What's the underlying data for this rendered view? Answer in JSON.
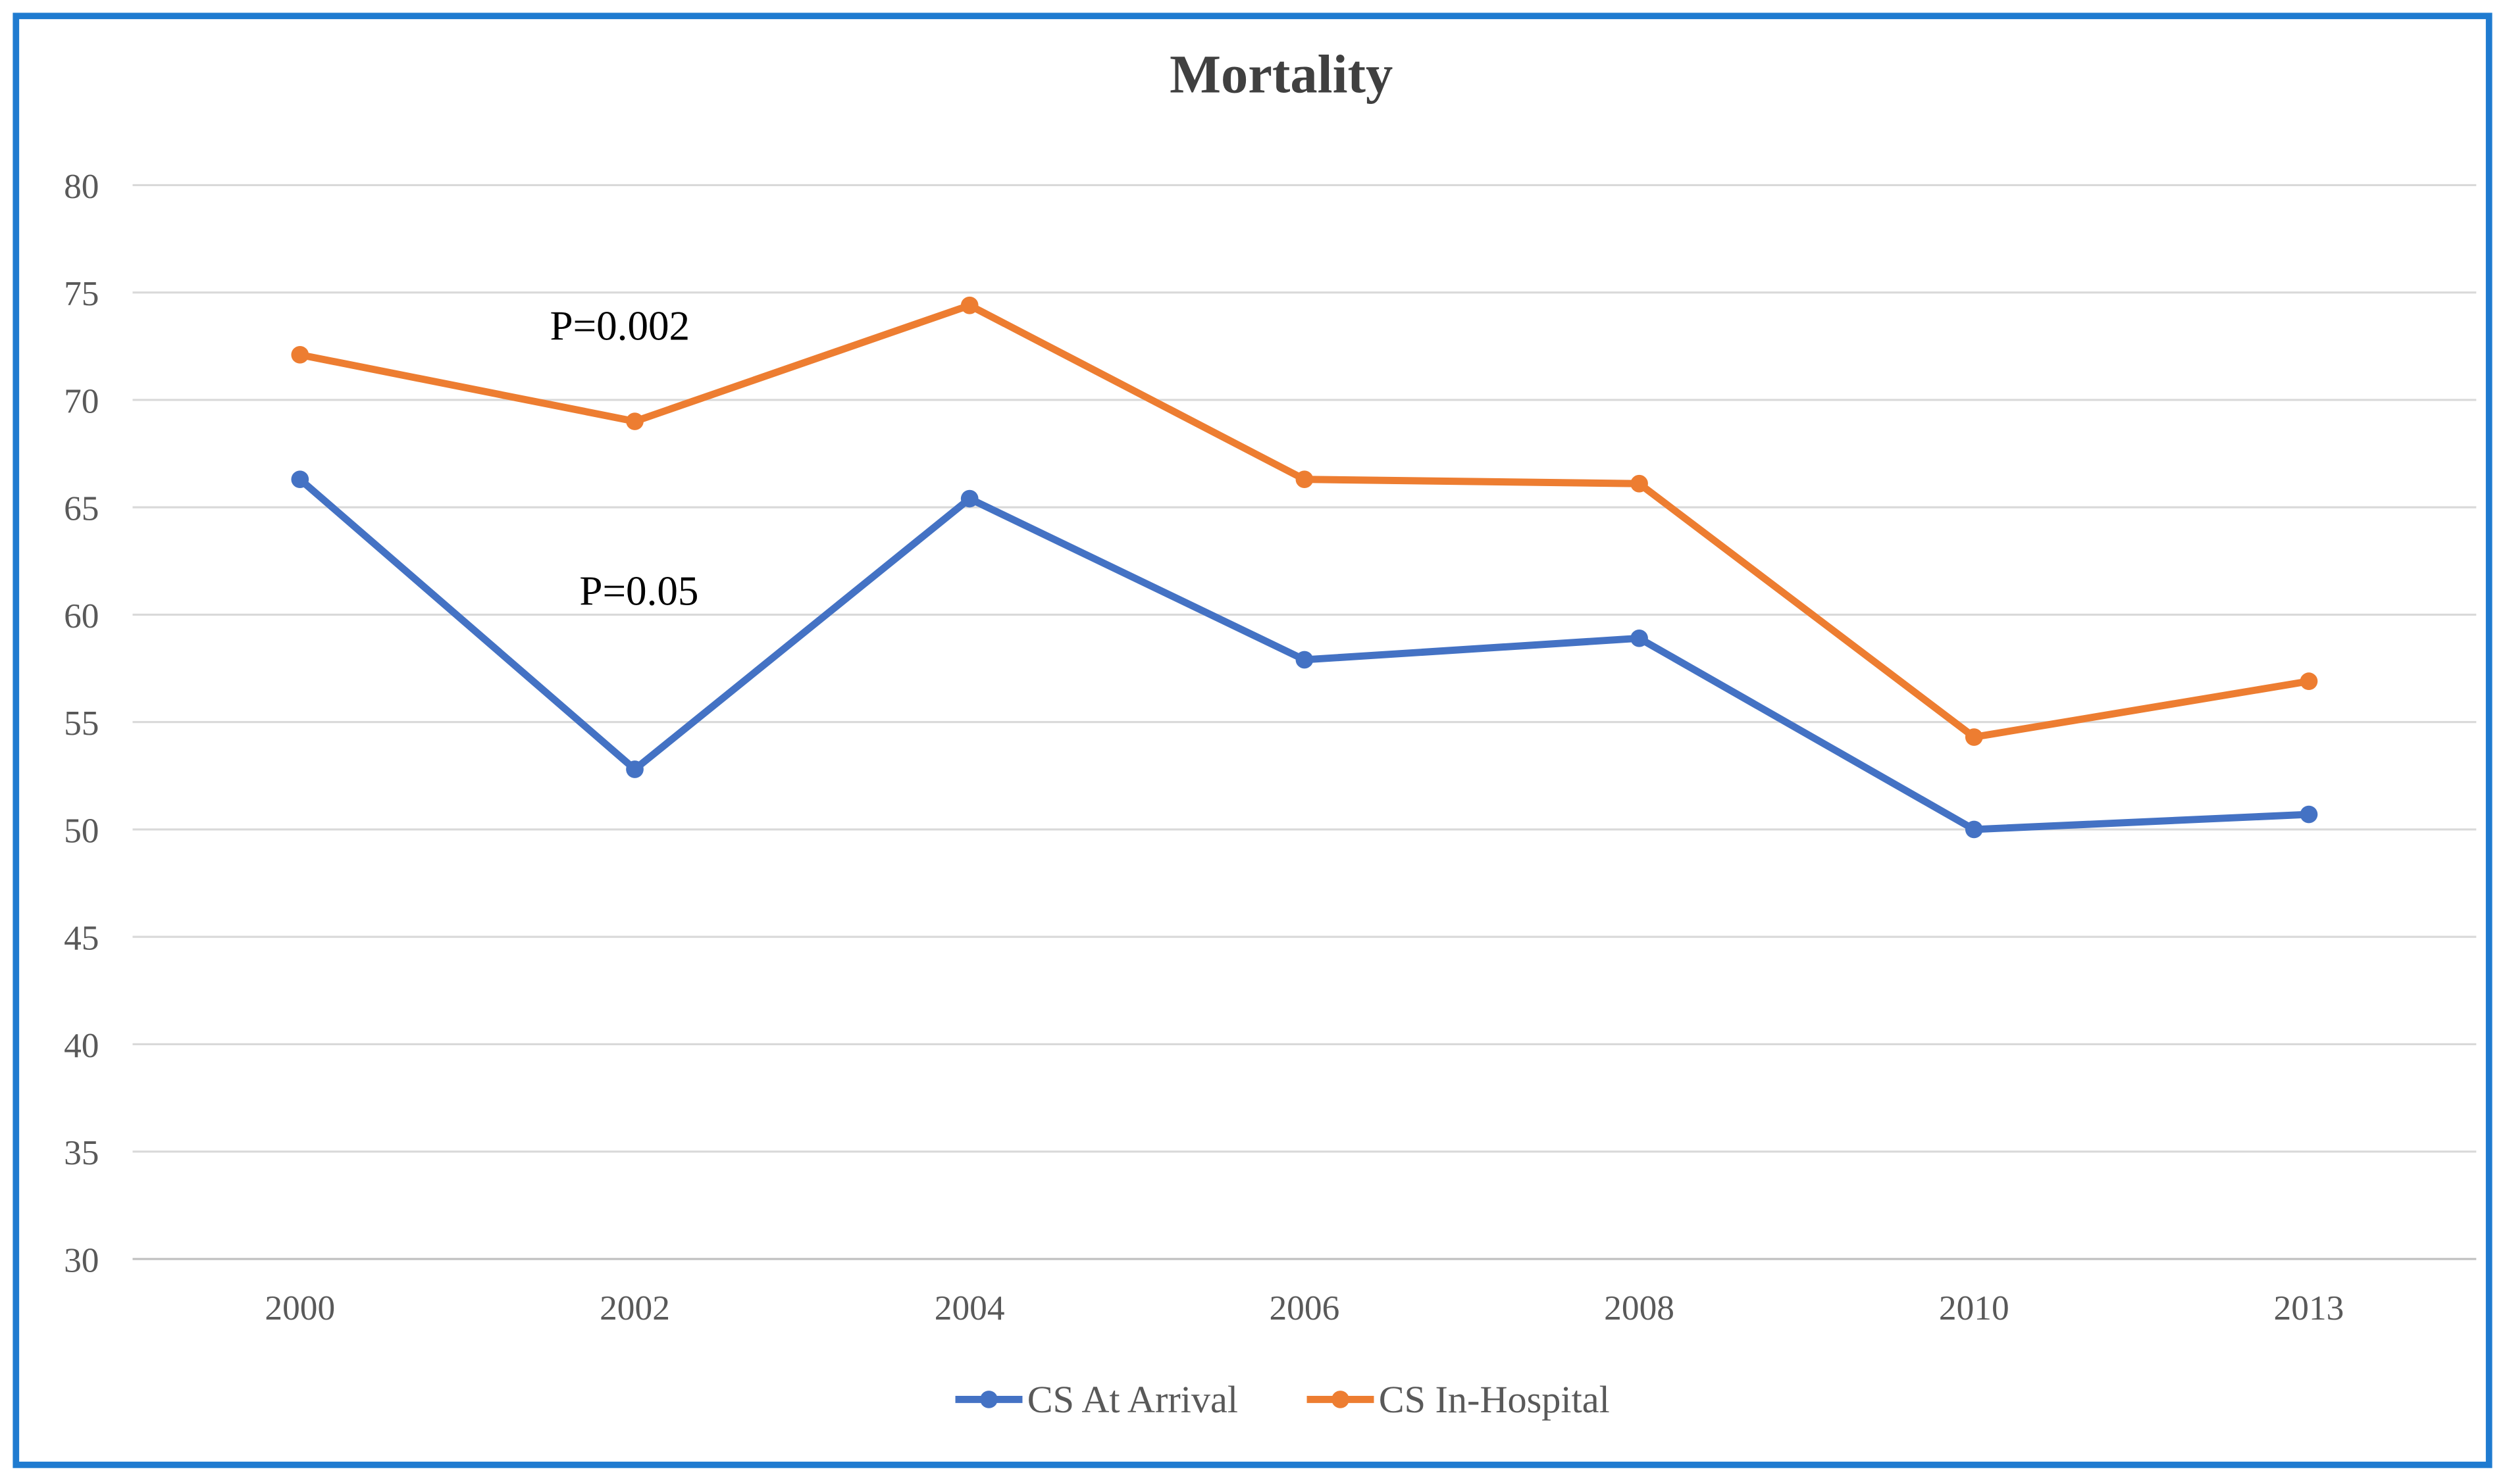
{
  "chart_data": {
    "type": "line",
    "title": "Mortality",
    "xlabel": "",
    "ylabel": "",
    "categories": [
      "2000",
      "2002",
      "2004",
      "2006",
      "2008",
      "2010",
      "2013"
    ],
    "ylim": [
      30,
      80
    ],
    "yticks": [
      30,
      35,
      40,
      45,
      50,
      55,
      60,
      65,
      70,
      75,
      80
    ],
    "grid": true,
    "legend_position": "bottom",
    "series": [
      {
        "name": "CS At Arrival",
        "color": "#4472C4",
        "values": [
          66.3,
          52.8,
          65.4,
          57.9,
          58.9,
          50.0,
          50.7
        ]
      },
      {
        "name": "CS In-Hospital",
        "color": "#ED7D31",
        "values": [
          72.1,
          69.0,
          74.4,
          66.3,
          66.1,
          54.3,
          56.9
        ]
      }
    ],
    "annotations": [
      {
        "text": "P=0.002",
        "series": "CS In-Hospital"
      },
      {
        "text": "P=0.05",
        "series": "CS At Arrival"
      }
    ]
  },
  "frame_color": "#1F7BD0"
}
